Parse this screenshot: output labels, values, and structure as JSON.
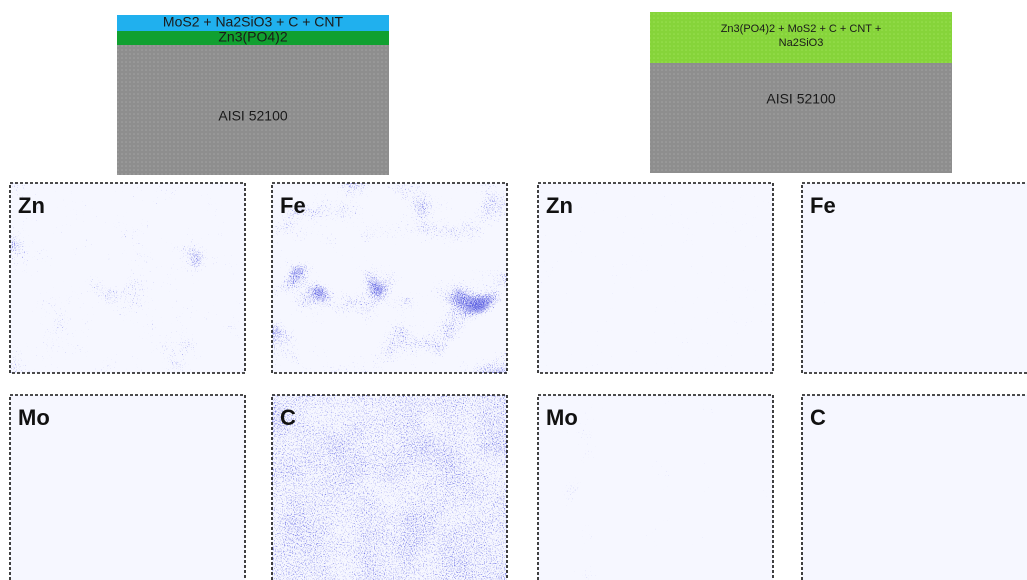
{
  "left_stack": {
    "layers": [
      "MoS2 + Na2SiO3 + C + CNT",
      "Zn3(PO4)2",
      "AISI 52100"
    ]
  },
  "right_stack": {
    "layers": [
      [
        "Zn3(PO4)2 + MoS2 + C + CNT +",
        "Na2SiO3"
      ],
      "AISI 52100"
    ]
  },
  "maps": [
    {
      "label": "Zn"
    },
    {
      "label": "Fe"
    },
    {
      "label": "Mo"
    },
    {
      "label": "C"
    },
    {
      "label": "Zn"
    },
    {
      "label": "Fe"
    },
    {
      "label": "Mo"
    },
    {
      "label": "C"
    }
  ]
}
